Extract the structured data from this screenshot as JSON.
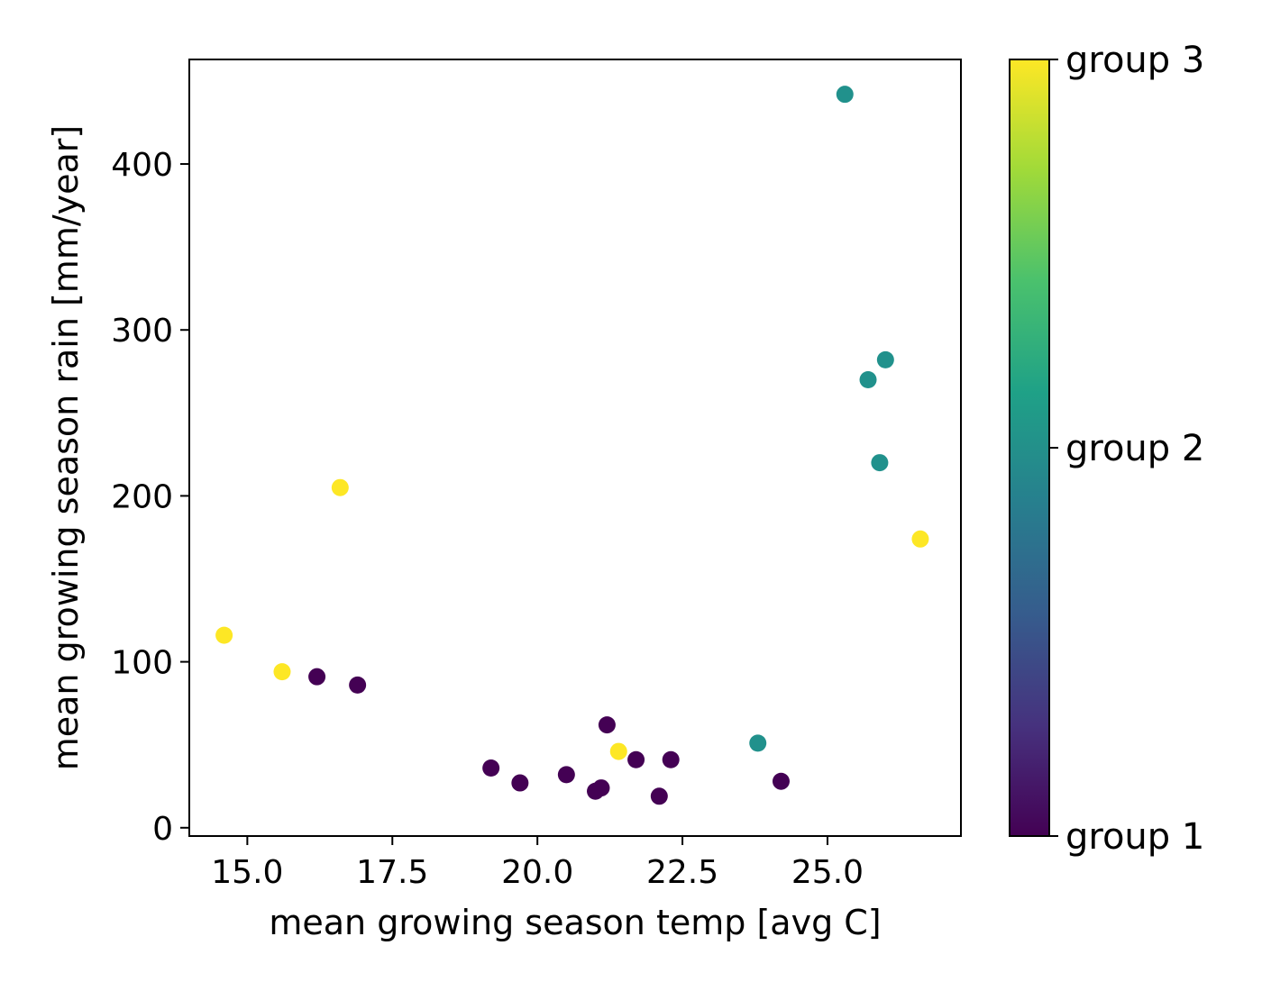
{
  "chart_data": {
    "type": "scatter",
    "title": "",
    "xlabel": "mean growing season temp [avg C]",
    "ylabel": "mean growing season rain [mm/year]",
    "xlim": [
      14.0,
      27.3
    ],
    "ylim": [
      -5,
      463
    ],
    "xticks": [
      15.0,
      17.5,
      20.0,
      22.5,
      25.0
    ],
    "xtick_labels": [
      "15.0",
      "17.5",
      "20.0",
      "22.5",
      "25.0"
    ],
    "yticks": [
      0,
      100,
      200,
      300,
      400
    ],
    "ytick_labels": [
      "0",
      "100",
      "200",
      "300",
      "400"
    ],
    "grid": false,
    "colorbar": {
      "colormap": "viridis",
      "range": [
        1,
        3
      ],
      "ticks": [
        1,
        2,
        3
      ],
      "labels": [
        "group 1",
        "group 2",
        "group 3"
      ],
      "stops": [
        "#440154",
        "#46327e",
        "#365c8d",
        "#277f8e",
        "#1fa187",
        "#4ac16d",
        "#a0da39",
        "#fde725"
      ]
    },
    "group_colors": {
      "1": "#440154",
      "2": "#21918c",
      "3": "#fde725"
    },
    "points": [
      {
        "x": 14.6,
        "y": 116,
        "group": 3
      },
      {
        "x": 15.6,
        "y": 94,
        "group": 3
      },
      {
        "x": 16.6,
        "y": 205,
        "group": 3
      },
      {
        "x": 21.4,
        "y": 46,
        "group": 3
      },
      {
        "x": 26.6,
        "y": 174,
        "group": 3
      },
      {
        "x": 16.2,
        "y": 91,
        "group": 1
      },
      {
        "x": 16.9,
        "y": 86,
        "group": 1
      },
      {
        "x": 19.2,
        "y": 36,
        "group": 1
      },
      {
        "x": 19.7,
        "y": 27,
        "group": 1
      },
      {
        "x": 20.5,
        "y": 32,
        "group": 1
      },
      {
        "x": 21.0,
        "y": 22,
        "group": 1
      },
      {
        "x": 21.1,
        "y": 24,
        "group": 1
      },
      {
        "x": 21.2,
        "y": 62,
        "group": 1
      },
      {
        "x": 21.7,
        "y": 41,
        "group": 1
      },
      {
        "x": 22.1,
        "y": 19,
        "group": 1
      },
      {
        "x": 22.3,
        "y": 41,
        "group": 1
      },
      {
        "x": 24.2,
        "y": 28,
        "group": 1
      },
      {
        "x": 23.8,
        "y": 51,
        "group": 2
      },
      {
        "x": 25.3,
        "y": 442,
        "group": 2
      },
      {
        "x": 25.7,
        "y": 270,
        "group": 2
      },
      {
        "x": 25.9,
        "y": 220,
        "group": 2
      },
      {
        "x": 26.0,
        "y": 282,
        "group": 2
      }
    ]
  }
}
